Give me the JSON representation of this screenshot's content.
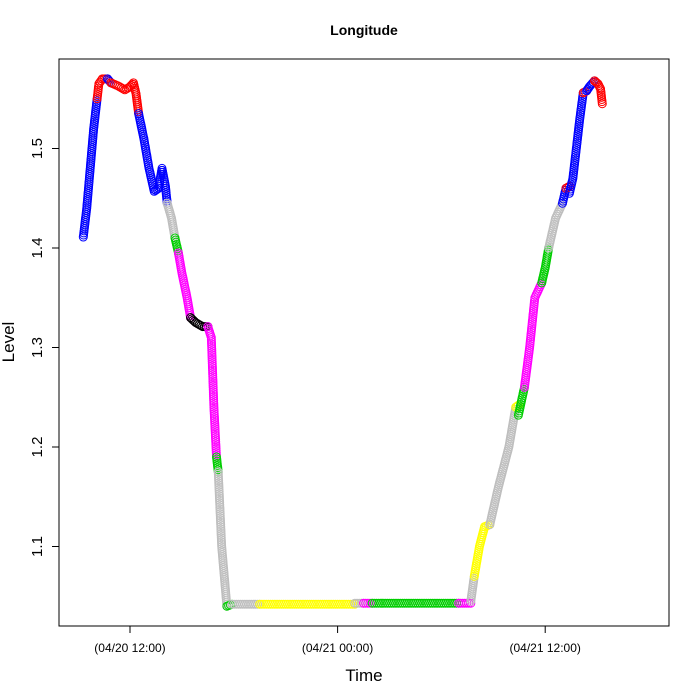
{
  "chart_data": {
    "type": "scatter",
    "title": "Longitude",
    "xlabel": "Time",
    "ylabel": "Level",
    "x_unit": "hours",
    "xlim": [
      -2.7,
      26.7
    ],
    "ylim": [
      1.022,
      1.592
    ],
    "x_ticks": [
      {
        "value": 0,
        "label": "(04/20 12:00)"
      },
      {
        "value": 12,
        "label": "(04/21 00:00)"
      },
      {
        "value": 24,
        "label": "(04/21 12:00)"
      }
    ],
    "y_ticks": [
      {
        "value": 1.1,
        "label": "1.1"
      },
      {
        "value": 1.2,
        "label": "1.2"
      },
      {
        "value": 1.3,
        "label": "1.3"
      },
      {
        "value": 1.4,
        "label": "1.4"
      },
      {
        "value": 1.5,
        "label": "1.5"
      }
    ],
    "grid": false,
    "marker": "open-circle",
    "colors": {
      "red": "#ff0000",
      "blue": "#0000ff",
      "gray": "#bebebe",
      "green": "#00cd00",
      "magenta": "#ff00ff",
      "black": "#000000",
      "yellow": "#ffff00"
    },
    "segments": [
      {
        "color": "blue",
        "points": [
          [
            -2.7,
            1.411
          ],
          [
            -2.5,
            1.44
          ],
          [
            -2.3,
            1.48
          ],
          [
            -2.1,
            1.52
          ],
          [
            -1.9,
            1.55
          ]
        ]
      },
      {
        "color": "red",
        "points": [
          [
            -1.9,
            1.55
          ],
          [
            -1.8,
            1.565
          ],
          [
            -1.6,
            1.57
          ],
          [
            -1.3,
            1.57
          ]
        ]
      },
      {
        "color": "blue",
        "points": [
          [
            -1.3,
            1.57
          ],
          [
            -1.1,
            1.566
          ]
        ]
      },
      {
        "color": "red",
        "points": [
          [
            -1.1,
            1.566
          ],
          [
            -0.7,
            1.563
          ],
          [
            -0.3,
            1.559
          ],
          [
            0.0,
            1.562
          ],
          [
            0.2,
            1.566
          ],
          [
            0.35,
            1.555
          ],
          [
            0.5,
            1.535
          ]
        ]
      },
      {
        "color": "blue",
        "points": [
          [
            0.5,
            1.535
          ],
          [
            0.8,
            1.51
          ],
          [
            1.1,
            1.48
          ],
          [
            1.4,
            1.457
          ],
          [
            1.65,
            1.46
          ],
          [
            1.85,
            1.48
          ],
          [
            2.05,
            1.462
          ],
          [
            2.15,
            1.445
          ]
        ]
      },
      {
        "color": "gray",
        "points": [
          [
            2.15,
            1.445
          ],
          [
            2.4,
            1.43
          ],
          [
            2.6,
            1.41
          ]
        ]
      },
      {
        "color": "green",
        "points": [
          [
            2.6,
            1.41
          ],
          [
            2.8,
            1.395
          ]
        ]
      },
      {
        "color": "magenta",
        "points": [
          [
            2.8,
            1.395
          ],
          [
            3.0,
            1.375
          ],
          [
            3.3,
            1.35
          ],
          [
            3.5,
            1.33
          ]
        ]
      },
      {
        "color": "black",
        "points": [
          [
            3.5,
            1.33
          ],
          [
            3.8,
            1.325
          ],
          [
            4.2,
            1.321
          ],
          [
            4.5,
            1.321
          ]
        ]
      },
      {
        "color": "magenta",
        "points": [
          [
            4.5,
            1.321
          ],
          [
            4.7,
            1.31
          ],
          [
            4.85,
            1.24
          ],
          [
            5.0,
            1.19
          ]
        ]
      },
      {
        "color": "green",
        "points": [
          [
            5.0,
            1.19
          ],
          [
            5.1,
            1.175
          ]
        ]
      },
      {
        "color": "gray",
        "points": [
          [
            5.1,
            1.175
          ],
          [
            5.3,
            1.1
          ],
          [
            5.5,
            1.06
          ],
          [
            5.6,
            1.04
          ]
        ]
      },
      {
        "color": "green",
        "points": [
          [
            5.6,
            1.04
          ],
          [
            5.9,
            1.042
          ]
        ]
      },
      {
        "color": "gray",
        "points": [
          [
            5.9,
            1.042
          ],
          [
            7.5,
            1.042
          ]
        ]
      },
      {
        "color": "yellow",
        "points": [
          [
            7.5,
            1.042
          ],
          [
            11.0,
            1.042
          ],
          [
            13.0,
            1.042
          ]
        ]
      },
      {
        "color": "gray",
        "points": [
          [
            13.0,
            1.043
          ],
          [
            13.5,
            1.043
          ]
        ]
      },
      {
        "color": "magenta",
        "points": [
          [
            13.5,
            1.043
          ],
          [
            14.0,
            1.043
          ]
        ]
      },
      {
        "color": "green",
        "points": [
          [
            14.0,
            1.043
          ],
          [
            17.0,
            1.043
          ],
          [
            19.0,
            1.043
          ]
        ]
      },
      {
        "color": "magenta",
        "points": [
          [
            19.0,
            1.043
          ],
          [
            19.7,
            1.043
          ]
        ]
      },
      {
        "color": "gray",
        "points": [
          [
            19.7,
            1.045
          ],
          [
            19.9,
            1.07
          ]
        ]
      },
      {
        "color": "yellow",
        "points": [
          [
            19.9,
            1.07
          ],
          [
            20.2,
            1.1
          ],
          [
            20.5,
            1.12
          ],
          [
            20.8,
            1.122
          ]
        ]
      },
      {
        "color": "gray",
        "points": [
          [
            20.8,
            1.122
          ],
          [
            21.3,
            1.16
          ],
          [
            21.9,
            1.2
          ],
          [
            22.3,
            1.24
          ]
        ]
      },
      {
        "color": "yellow",
        "points": [
          [
            22.3,
            1.24
          ],
          [
            22.45,
            1.242
          ]
        ]
      },
      {
        "color": "green",
        "points": [
          [
            22.45,
            1.232
          ],
          [
            22.8,
            1.26
          ]
        ]
      },
      {
        "color": "magenta",
        "points": [
          [
            22.8,
            1.26
          ],
          [
            23.1,
            1.3
          ],
          [
            23.4,
            1.35
          ],
          [
            23.8,
            1.365
          ]
        ]
      },
      {
        "color": "green",
        "points": [
          [
            23.8,
            1.365
          ],
          [
            24.0,
            1.38
          ],
          [
            24.2,
            1.4
          ]
        ]
      },
      {
        "color": "gray",
        "points": [
          [
            24.2,
            1.4
          ],
          [
            24.6,
            1.43
          ],
          [
            25.0,
            1.445
          ]
        ]
      },
      {
        "color": "blue",
        "points": [
          [
            25.0,
            1.445
          ],
          [
            25.2,
            1.46
          ]
        ]
      },
      {
        "color": "red",
        "points": [
          [
            25.2,
            1.46
          ],
          [
            25.4,
            1.462
          ]
        ]
      },
      {
        "color": "blue",
        "points": [
          [
            25.4,
            1.455
          ],
          [
            25.6,
            1.47
          ],
          [
            25.8,
            1.5
          ],
          [
            26.0,
            1.53
          ],
          [
            26.2,
            1.556
          ]
        ]
      },
      {
        "color": "red",
        "points": [
          [
            26.2,
            1.556
          ],
          [
            26.4,
            1.558
          ]
        ]
      },
      {
        "color": "blue",
        "points": [
          [
            26.4,
            1.558
          ],
          [
            26.55,
            1.562
          ],
          [
            26.7,
            1.565
          ],
          [
            26.85,
            1.568
          ]
        ]
      },
      {
        "color": "red",
        "points": [
          [
            26.85,
            1.568
          ],
          [
            27.05,
            1.565
          ],
          [
            27.2,
            1.56
          ],
          [
            27.3,
            1.545
          ]
        ]
      }
    ]
  }
}
